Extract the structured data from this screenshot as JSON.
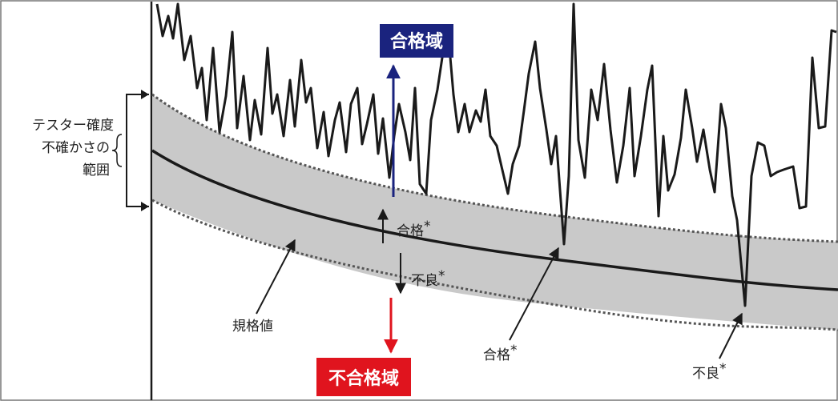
{
  "colors": {
    "band": "#c9c9c9",
    "band_edge": "#555555",
    "line": "#1a1a1a",
    "pass_zone": "#1a237e",
    "fail_zone": "#e0141e",
    "frame": "#777777"
  },
  "labels": {
    "uncertainty_lines": [
      "テスター確度",
      "不確かさの",
      "範囲"
    ],
    "spec_value": "規格値",
    "pass_zone": "合格域",
    "fail_zone": "不合格域",
    "pass_upper": "合格",
    "fail_lower": "不良",
    "pass_point": "合格",
    "fail_point": "不良",
    "asterisk": "*"
  }
}
